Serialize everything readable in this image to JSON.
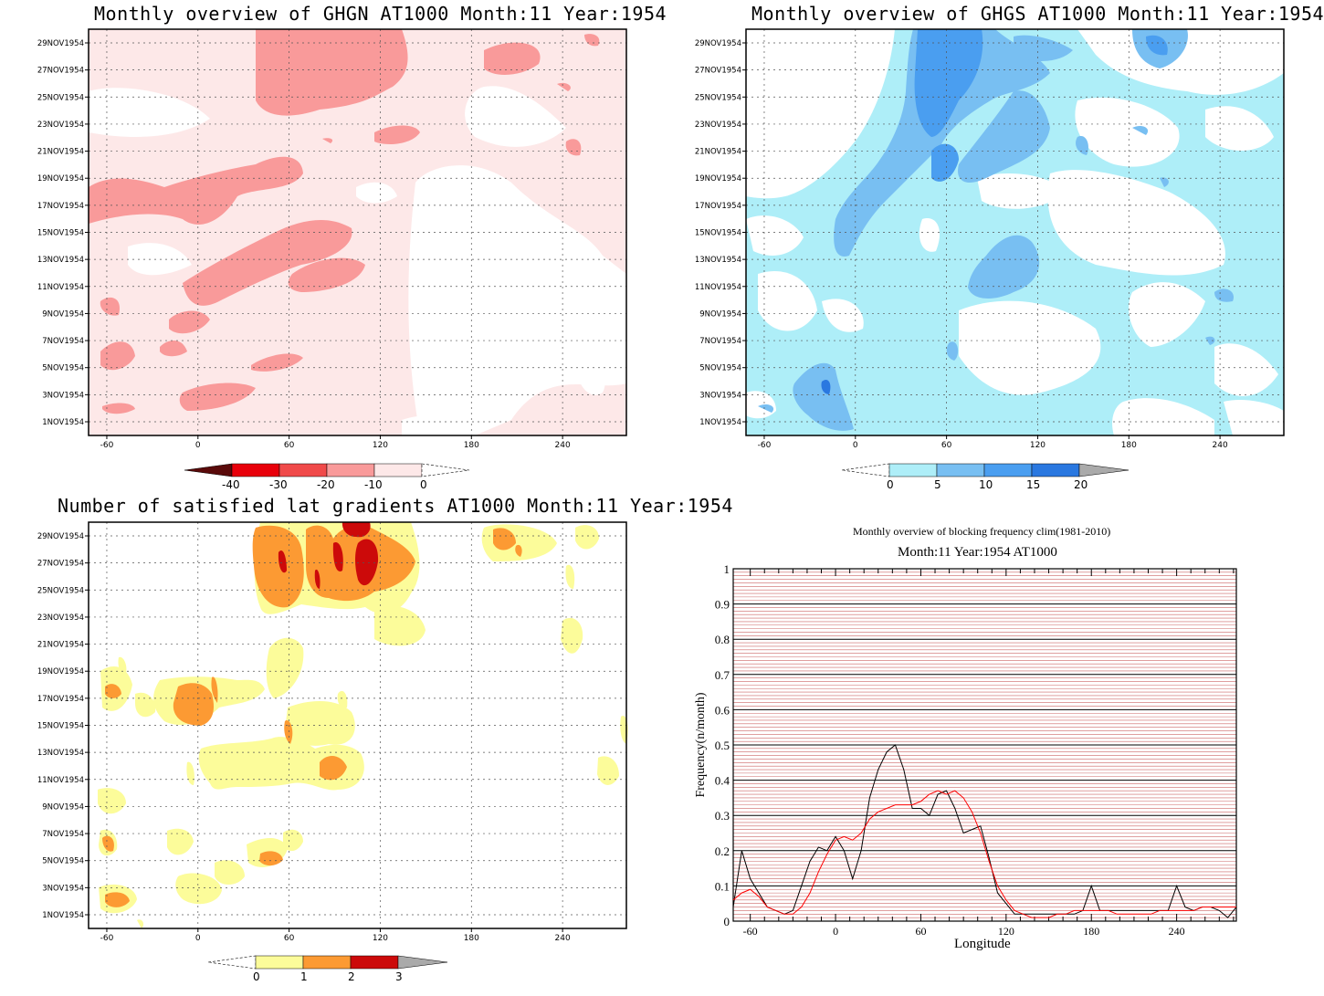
{
  "panels": {
    "ghgn": {
      "title": "Monthly overview of GHGN AT1000 Month:11 Year:1954"
    },
    "ghgs": {
      "title": "Monthly overview of GHGS AT1000 Month:11 Year:1954"
    },
    "lat": {
      "title": "Number of satisfied lat gradients AT1000 Month:11 Year:1954"
    },
    "freq": {
      "title": "Monthly overview of blocking frequency clim(1981-2010)",
      "subtitle": "Month:11 Year:1954  AT1000"
    }
  },
  "colors": {
    "ghgn": [
      "#5a0a0a",
      "#e8000b",
      "#f04a4a",
      "#f99a9a",
      "#fde8e8"
    ],
    "ghgs": [
      "#aeeef8",
      "#78bff2",
      "#4a9ef0",
      "#2a78e0",
      "#aaaaaa"
    ],
    "lat": [
      "#fcfc9a",
      "#fc9a33",
      "#cc0a0a",
      "#aaaaaa"
    ],
    "clim": "#ff0000",
    "year": "#000000"
  },
  "chart_data": [
    {
      "type": "heatmap",
      "title": "Monthly overview of GHGN AT1000 Month:11 Year:1954",
      "xlabel": "",
      "ylabel": "",
      "x_ticks": [
        -60,
        0,
        60,
        120,
        180,
        240
      ],
      "y_ticks": [
        "1NOV1954",
        "3NOV1954",
        "5NOV1954",
        "7NOV1954",
        "9NOV1954",
        "11NOV1954",
        "13NOV1954",
        "15NOV1954",
        "17NOV1954",
        "19NOV1954",
        "21NOV1954",
        "23NOV1954",
        "25NOV1954",
        "27NOV1954",
        "29NOV1954"
      ],
      "xlim": [
        -72,
        282
      ],
      "colorbar": {
        "levels": [
          -40,
          -30,
          -20,
          -10,
          0
        ]
      }
    },
    {
      "type": "heatmap",
      "title": "Monthly overview of GHGS AT1000 Month:11 Year:1954",
      "xlabel": "",
      "ylabel": "",
      "x_ticks": [
        -60,
        0,
        60,
        120,
        180,
        240
      ],
      "y_ticks": [
        "1NOV1954",
        "3NOV1954",
        "5NOV1954",
        "7NOV1954",
        "9NOV1954",
        "11NOV1954",
        "13NOV1954",
        "15NOV1954",
        "17NOV1954",
        "19NOV1954",
        "21NOV1954",
        "23NOV1954",
        "25NOV1954",
        "27NOV1954",
        "29NOV1954"
      ],
      "xlim": [
        -72,
        282
      ],
      "colorbar": {
        "levels": [
          0,
          5,
          10,
          15,
          20
        ]
      }
    },
    {
      "type": "heatmap",
      "title": "Number of satisfied lat gradients AT1000 Month:11 Year:1954",
      "xlabel": "",
      "ylabel": "",
      "x_ticks": [
        -60,
        0,
        60,
        120,
        180,
        240
      ],
      "y_ticks": [
        "1NOV1954",
        "3NOV1954",
        "5NOV1954",
        "7NOV1954",
        "9NOV1954",
        "11NOV1954",
        "13NOV1954",
        "15NOV1954",
        "17NOV1954",
        "19NOV1954",
        "21NOV1954",
        "23NOV1954",
        "25NOV1954",
        "27NOV1954",
        "29NOV1954"
      ],
      "xlim": [
        -72,
        282
      ],
      "colorbar": {
        "levels": [
          0,
          1,
          2,
          3
        ]
      }
    },
    {
      "type": "line",
      "title": "Monthly overview of blocking frequency clim(1981-2010)",
      "subtitle": "Month:11 Year:1954  AT1000",
      "xlabel": "Longitude",
      "ylabel": "Frequency(n/month)",
      "xlim": [
        -72,
        282
      ],
      "ylim": [
        0,
        1
      ],
      "x_ticks": [
        -60,
        0,
        60,
        120,
        180,
        240
      ],
      "y_ticks": [
        0,
        0.1,
        0.2,
        0.3,
        0.4,
        0.5,
        0.6,
        0.7,
        0.8,
        0.9,
        1
      ],
      "x": [
        -72,
        -66,
        -60,
        -54,
        -48,
        -42,
        -36,
        -30,
        -24,
        -18,
        -12,
        -6,
        0,
        6,
        12,
        18,
        24,
        30,
        36,
        42,
        48,
        54,
        60,
        66,
        72,
        78,
        84,
        90,
        96,
        102,
        108,
        114,
        120,
        126,
        132,
        138,
        144,
        150,
        156,
        162,
        168,
        174,
        180,
        186,
        192,
        198,
        204,
        210,
        216,
        222,
        228,
        234,
        240,
        246,
        252,
        258,
        264,
        270,
        276,
        282
      ],
      "series": [
        {
          "values": [
            0.04,
            0.2,
            0.12,
            0.08,
            0.04,
            0.03,
            0.02,
            0.03,
            0.1,
            0.17,
            0.21,
            0.2,
            0.24,
            0.2,
            0.12,
            0.2,
            0.35,
            0.43,
            0.48,
            0.5,
            0.43,
            0.32,
            0.32,
            0.3,
            0.36,
            0.37,
            0.32,
            0.25,
            0.26,
            0.27,
            0.18,
            0.08,
            0.05,
            0.02,
            0.02,
            0.02,
            0.02,
            0.02,
            0.02,
            0.02,
            0.02,
            0.03,
            0.1,
            0.03,
            0.03,
            0.03,
            0.03,
            0.03,
            0.03,
            0.03,
            0.03,
            0.03,
            0.1,
            0.04,
            0.03,
            0.04,
            0.04,
            0.03,
            0.01,
            0.04
          ]
        },
        {
          "values": [
            0.06,
            0.08,
            0.09,
            0.07,
            0.04,
            0.03,
            0.02,
            0.02,
            0.04,
            0.08,
            0.14,
            0.19,
            0.23,
            0.24,
            0.23,
            0.25,
            0.29,
            0.31,
            0.32,
            0.33,
            0.33,
            0.33,
            0.34,
            0.36,
            0.37,
            0.36,
            0.37,
            0.35,
            0.31,
            0.25,
            0.17,
            0.1,
            0.06,
            0.03,
            0.02,
            0.01,
            0.01,
            0.01,
            0.02,
            0.02,
            0.03,
            0.03,
            0.03,
            0.03,
            0.03,
            0.02,
            0.02,
            0.02,
            0.02,
            0.02,
            0.03,
            0.03,
            0.03,
            0.03,
            0.03,
            0.04,
            0.04,
            0.04,
            0.04,
            0.04
          ]
        }
      ]
    }
  ]
}
